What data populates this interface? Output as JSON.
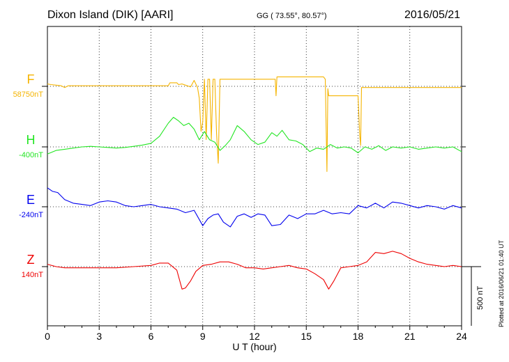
{
  "header": {
    "station": "Dixon Island (DIK)  [AARI]",
    "coords": "GG ( 73.55°,  80.57°)",
    "date": "2016/05/21"
  },
  "footer": {
    "plotted": "Plotted at 2016/06/21 01:40 UT",
    "scale": "500 nT"
  },
  "chart_data": {
    "type": "line",
    "title": "",
    "xlabel": "U T (hour)",
    "xlim": [
      0,
      24
    ],
    "xticks": [
      0,
      3,
      6,
      9,
      12,
      15,
      18,
      21,
      24
    ],
    "grid": true,
    "series": [
      {
        "name": "F",
        "baseline": "58750nT",
        "color": "#f5b400",
        "x": [
          0,
          0.2,
          0.5,
          0.8,
          1.0,
          1.2,
          1.5,
          2,
          3,
          4,
          5,
          6,
          7,
          7.1,
          7.5,
          7.6,
          7.8,
          8,
          8.2,
          8.3,
          8.5,
          8.7,
          8.8,
          8.9,
          9.0,
          9.1,
          9.2,
          9.3,
          9.4,
          9.5,
          9.6,
          9.7,
          9.8,
          9.9,
          10.0,
          10.1,
          10.5,
          11,
          12,
          13,
          13.2,
          13.25,
          13.3,
          14,
          15,
          16,
          16.1,
          16.2,
          16.25,
          16.3,
          16.5,
          17,
          18,
          18.1,
          18.15,
          18.2,
          19,
          20,
          21,
          22,
          23,
          24
        ],
        "y": [
          20,
          15,
          10,
          5,
          -10,
          5,
          5,
          5,
          5,
          5,
          5,
          5,
          5,
          30,
          30,
          15,
          20,
          10,
          0,
          -5,
          50,
          -10,
          -100,
          -380,
          -300,
          60,
          -450,
          60,
          60,
          -450,
          60,
          60,
          -400,
          -650,
          60,
          60,
          60,
          60,
          60,
          60,
          60,
          -80,
          80,
          80,
          80,
          80,
          60,
          -720,
          -20,
          -80,
          -80,
          -80,
          -80,
          -420,
          -500,
          -10,
          -10,
          -10,
          -10,
          -10,
          -10,
          -10
        ]
      },
      {
        "name": "H",
        "baseline": "-400nT",
        "color": "#22e622",
        "x": [
          0,
          0.5,
          1,
          1.5,
          2,
          2.5,
          3,
          3.5,
          4,
          4.5,
          5,
          5.5,
          6,
          6.5,
          7,
          7.3,
          7.6,
          7.9,
          8.2,
          8.5,
          8.8,
          9.1,
          9.4,
          9.7,
          10,
          10.3,
          10.6,
          11,
          11.4,
          11.8,
          12.2,
          12.6,
          13,
          13.3,
          13.6,
          14,
          14.4,
          14.8,
          15.2,
          15.6,
          16,
          16.4,
          16.8,
          17.2,
          17.6,
          18,
          18.4,
          18.8,
          19.2,
          19.6,
          20,
          20.5,
          21,
          21.5,
          22,
          22.5,
          23,
          23.5,
          24
        ],
        "y": [
          -60,
          -30,
          -20,
          -10,
          0,
          5,
          0,
          -5,
          -10,
          -5,
          5,
          15,
          30,
          90,
          200,
          250,
          220,
          180,
          200,
          150,
          60,
          130,
          60,
          40,
          -30,
          10,
          60,
          180,
          130,
          60,
          20,
          40,
          120,
          90,
          140,
          60,
          50,
          20,
          -40,
          -10,
          -20,
          20,
          -10,
          0,
          -10,
          -50,
          0,
          -20,
          10,
          -30,
          0,
          -10,
          0,
          -20,
          -10,
          0,
          -10,
          0,
          -40
        ]
      },
      {
        "name": "E",
        "baseline": "-240nT",
        "color": "#0000ee",
        "x": [
          0,
          0.3,
          0.6,
          1,
          1.5,
          2,
          2.5,
          3,
          3.5,
          4,
          4.5,
          5,
          5.5,
          6,
          6.5,
          7,
          7.5,
          8,
          8.5,
          9,
          9.3,
          9.6,
          9.9,
          10.2,
          10.6,
          11,
          11.4,
          11.8,
          12.2,
          12.6,
          13,
          13.5,
          14,
          14.5,
          15,
          15.5,
          16,
          16.5,
          17,
          17.5,
          18,
          18.5,
          19,
          19.5,
          20,
          20.5,
          21,
          21.5,
          22,
          22.5,
          23,
          23.5,
          24
        ],
        "y": [
          160,
          130,
          120,
          60,
          30,
          20,
          10,
          40,
          50,
          40,
          10,
          0,
          10,
          20,
          0,
          -10,
          -20,
          -50,
          -30,
          -160,
          -100,
          -70,
          -60,
          -130,
          -170,
          -80,
          -60,
          -90,
          -60,
          -70,
          -160,
          -150,
          -70,
          -100,
          -60,
          -60,
          -30,
          -60,
          -50,
          -60,
          10,
          -10,
          30,
          -10,
          40,
          30,
          10,
          -10,
          10,
          0,
          -20,
          10,
          -10
        ]
      },
      {
        "name": "Z",
        "baseline": "140nT",
        "color": "#ee0000",
        "x": [
          0,
          0.5,
          1,
          2,
          3,
          4,
          5,
          6,
          6.5,
          7,
          7.5,
          7.8,
          8,
          8.3,
          8.6,
          9,
          9.5,
          10,
          10.5,
          11,
          11.5,
          12,
          12.5,
          13,
          13.5,
          14,
          14.5,
          15,
          15.5,
          16,
          16.3,
          16.6,
          17,
          17.5,
          18,
          18.5,
          19,
          19.5,
          20,
          20.5,
          21,
          21.5,
          22,
          22.5,
          23,
          23.5,
          24
        ],
        "y": [
          20,
          0,
          -10,
          -10,
          -10,
          -10,
          0,
          10,
          30,
          30,
          -30,
          -190,
          -180,
          -120,
          -40,
          10,
          20,
          40,
          40,
          20,
          -10,
          -10,
          -20,
          -10,
          0,
          10,
          -10,
          -20,
          -60,
          -110,
          -190,
          -120,
          -10,
          0,
          10,
          40,
          120,
          110,
          130,
          110,
          70,
          40,
          20,
          10,
          0,
          10,
          0
        ]
      }
    ]
  }
}
